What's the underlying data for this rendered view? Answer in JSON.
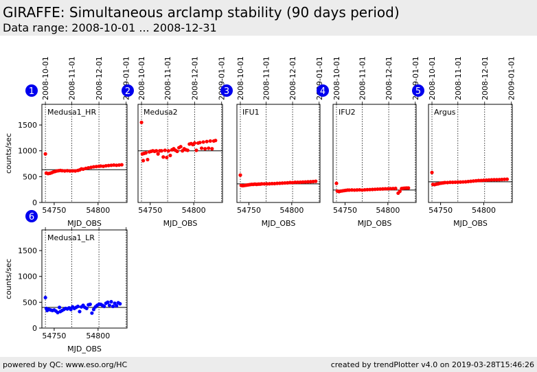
{
  "header": {
    "title": "GIRAFFE: Simultaneous arclamp stability (90 days period)",
    "subtitle": "Data range: 2008-10-01 ... 2008-12-31"
  },
  "footer": {
    "left": "powered by QC: www.eso.org/HC",
    "right": "created by trendPlotter v4.0 on 2019-03-28T15:46:26"
  },
  "colors": {
    "series_red": "#ff0000",
    "series_blue": "#0000ff",
    "badge": "#0000ee",
    "header_bg": "#ececec"
  },
  "chart_data": [
    {
      "type": "scatter",
      "id": 1,
      "label": "Medusa1_HR",
      "color": "#ff0000",
      "xlabel": "MJD_OBS",
      "ylabel": "counts/sec",
      "xlim": [
        54736,
        54833
      ],
      "ylim": [
        0,
        1900
      ],
      "xticks": [
        54750,
        54800
      ],
      "yticks": [
        0,
        500,
        1000,
        1500
      ],
      "date_ticks": [
        {
          "mjd": 54740,
          "label": "2008-10-01"
        },
        {
          "mjd": 54770,
          "label": "2008-11-01"
        },
        {
          "mjd": 54801,
          "label": "2008-12-01"
        },
        {
          "mjd": 54832,
          "label": "2009-01-01"
        }
      ],
      "reference": 635,
      "points": [
        [
          54740,
          940
        ],
        [
          54741,
          570
        ],
        [
          54743,
          560
        ],
        [
          54745,
          565
        ],
        [
          54747,
          575
        ],
        [
          54749,
          590
        ],
        [
          54751,
          600
        ],
        [
          54753,
          610
        ],
        [
          54755,
          615
        ],
        [
          54757,
          620
        ],
        [
          54759,
          615
        ],
        [
          54762,
          610
        ],
        [
          54765,
          615
        ],
        [
          54768,
          610
        ],
        [
          54771,
          612
        ],
        [
          54774,
          610
        ],
        [
          54777,
          620
        ],
        [
          54779,
          630
        ],
        [
          54781,
          650
        ],
        [
          54783,
          645
        ],
        [
          54786,
          660
        ],
        [
          54789,
          670
        ],
        [
          54792,
          680
        ],
        [
          54795,
          690
        ],
        [
          54798,
          695
        ],
        [
          54801,
          700
        ],
        [
          54803,
          705
        ],
        [
          54806,
          700
        ],
        [
          54809,
          710
        ],
        [
          54812,
          715
        ],
        [
          54815,
          720
        ],
        [
          54818,
          725
        ],
        [
          54821,
          720
        ],
        [
          54824,
          725
        ],
        [
          54827,
          730
        ]
      ]
    },
    {
      "type": "scatter",
      "id": 2,
      "label": "Medusa2",
      "color": "#ff0000",
      "xlabel": "MJD_OBS",
      "ylabel": "",
      "xlim": [
        54736,
        54833
      ],
      "ylim": [
        0,
        1900
      ],
      "xticks": [
        54750,
        54800
      ],
      "yticks": [],
      "date_ticks": [
        {
          "mjd": 54740,
          "label": "2008-10-01"
        },
        {
          "mjd": 54770,
          "label": "2008-11-01"
        },
        {
          "mjd": 54801,
          "label": "2008-12-01"
        },
        {
          "mjd": 54832,
          "label": "2009-01-01"
        }
      ],
      "reference": 1000,
      "points": [
        [
          54740,
          1550
        ],
        [
          54741,
          940
        ],
        [
          54742,
          810
        ],
        [
          54743,
          950
        ],
        [
          54745,
          960
        ],
        [
          54747,
          830
        ],
        [
          54749,
          980
        ],
        [
          54751,
          990
        ],
        [
          54753,
          1000
        ],
        [
          54755,
          990
        ],
        [
          54757,
          1000
        ],
        [
          54759,
          940
        ],
        [
          54761,
          1000
        ],
        [
          54763,
          1000
        ],
        [
          54765,
          880
        ],
        [
          54767,
          1010
        ],
        [
          54769,
          870
        ],
        [
          54771,
          1000
        ],
        [
          54773,
          910
        ],
        [
          54775,
          1020
        ],
        [
          54777,
          1040
        ],
        [
          54779,
          1010
        ],
        [
          54781,
          990
        ],
        [
          54783,
          1060
        ],
        [
          54785,
          1080
        ],
        [
          54787,
          1000
        ],
        [
          54789,
          1040
        ],
        [
          54791,
          1020
        ],
        [
          54793,
          1010
        ],
        [
          54795,
          1130
        ],
        [
          54797,
          1140
        ],
        [
          54799,
          1120
        ],
        [
          54801,
          1150
        ],
        [
          54803,
          1010
        ],
        [
          54805,
          1150
        ],
        [
          54807,
          1160
        ],
        [
          54809,
          1050
        ],
        [
          54811,
          1170
        ],
        [
          54813,
          1040
        ],
        [
          54815,
          1180
        ],
        [
          54817,
          1050
        ],
        [
          54819,
          1190
        ],
        [
          54821,
          1040
        ],
        [
          54823,
          1190
        ],
        [
          54825,
          1200
        ]
      ]
    },
    {
      "type": "scatter",
      "id": 3,
      "label": "IFU1",
      "color": "#ff0000",
      "xlabel": "MJD_OBS",
      "ylabel": "",
      "xlim": [
        54736,
        54833
      ],
      "ylim": [
        0,
        1900
      ],
      "xticks": [
        54750,
        54800
      ],
      "yticks": [],
      "date_ticks": [
        {
          "mjd": 54740,
          "label": "2008-10-01"
        },
        {
          "mjd": 54770,
          "label": "2008-11-01"
        },
        {
          "mjd": 54801,
          "label": "2008-12-01"
        },
        {
          "mjd": 54832,
          "label": "2009-01-01"
        }
      ],
      "reference": 360,
      "points": [
        [
          54740,
          530
        ],
        [
          54741,
          330
        ],
        [
          54743,
          325
        ],
        [
          54745,
          330
        ],
        [
          54747,
          335
        ],
        [
          54749,
          340
        ],
        [
          54751,
          345
        ],
        [
          54753,
          350
        ],
        [
          54755,
          350
        ],
        [
          54757,
          355
        ],
        [
          54759,
          350
        ],
        [
          54761,
          355
        ],
        [
          54763,
          355
        ],
        [
          54765,
          360
        ],
        [
          54768,
          360
        ],
        [
          54771,
          360
        ],
        [
          54774,
          362
        ],
        [
          54777,
          365
        ],
        [
          54780,
          365
        ],
        [
          54783,
          370
        ],
        [
          54786,
          372
        ],
        [
          54789,
          375
        ],
        [
          54792,
          378
        ],
        [
          54795,
          380
        ],
        [
          54798,
          385
        ],
        [
          54801,
          385
        ],
        [
          54804,
          390
        ],
        [
          54807,
          390
        ],
        [
          54810,
          392
        ],
        [
          54813,
          395
        ],
        [
          54816,
          398
        ],
        [
          54819,
          400
        ],
        [
          54822,
          402
        ],
        [
          54825,
          405
        ],
        [
          54828,
          410
        ]
      ]
    },
    {
      "type": "scatter",
      "id": 4,
      "label": "IFU2",
      "color": "#ff0000",
      "xlabel": "MJD_OBS",
      "ylabel": "",
      "xlim": [
        54736,
        54833
      ],
      "ylim": [
        0,
        1900
      ],
      "xticks": [
        54750,
        54800
      ],
      "yticks": [],
      "date_ticks": [
        {
          "mjd": 54740,
          "label": "2008-10-01"
        },
        {
          "mjd": 54770,
          "label": "2008-11-01"
        },
        {
          "mjd": 54801,
          "label": "2008-12-01"
        },
        {
          "mjd": 54832,
          "label": "2009-01-01"
        }
      ],
      "reference": 240,
      "points": [
        [
          54740,
          370
        ],
        [
          54741,
          220
        ],
        [
          54743,
          210
        ],
        [
          54745,
          220
        ],
        [
          54747,
          225
        ],
        [
          54749,
          230
        ],
        [
          54751,
          235
        ],
        [
          54753,
          240
        ],
        [
          54755,
          240
        ],
        [
          54758,
          242
        ],
        [
          54761,
          240
        ],
        [
          54764,
          242
        ],
        [
          54767,
          245
        ],
        [
          54770,
          240
        ],
        [
          54773,
          245
        ],
        [
          54776,
          248
        ],
        [
          54779,
          250
        ],
        [
          54782,
          252
        ],
        [
          54785,
          255
        ],
        [
          54788,
          258
        ],
        [
          54791,
          260
        ],
        [
          54794,
          262
        ],
        [
          54797,
          265
        ],
        [
          54800,
          265
        ],
        [
          54803,
          268
        ],
        [
          54806,
          270
        ],
        [
          54809,
          272
        ],
        [
          54812,
          180
        ],
        [
          54814,
          215
        ],
        [
          54816,
          270
        ],
        [
          54818,
          275
        ],
        [
          54820,
          278
        ],
        [
          54822,
          280
        ],
        [
          54824,
          280
        ]
      ]
    },
    {
      "type": "scatter",
      "id": 5,
      "label": "Argus",
      "color": "#ff0000",
      "xlabel": "MJD_OBS",
      "ylabel": "",
      "xlim": [
        54736,
        54833
      ],
      "ylim": [
        0,
        1900
      ],
      "xticks": [
        54750,
        54800
      ],
      "yticks": [],
      "date_ticks": [
        {
          "mjd": 54740,
          "label": "2008-10-01"
        },
        {
          "mjd": 54770,
          "label": "2008-11-01"
        },
        {
          "mjd": 54801,
          "label": "2008-12-01"
        },
        {
          "mjd": 54832,
          "label": "2009-01-01"
        }
      ],
      "reference": 400,
      "points": [
        [
          54740,
          580
        ],
        [
          54741,
          350
        ],
        [
          54743,
          345
        ],
        [
          54745,
          355
        ],
        [
          54747,
          360
        ],
        [
          54749,
          370
        ],
        [
          54751,
          375
        ],
        [
          54753,
          380
        ],
        [
          54755,
          385
        ],
        [
          54758,
          385
        ],
        [
          54761,
          390
        ],
        [
          54764,
          390
        ],
        [
          54767,
          392
        ],
        [
          54770,
          395
        ],
        [
          54773,
          395
        ],
        [
          54776,
          398
        ],
        [
          54779,
          400
        ],
        [
          54782,
          405
        ],
        [
          54785,
          410
        ],
        [
          54788,
          415
        ],
        [
          54791,
          420
        ],
        [
          54794,
          425
        ],
        [
          54797,
          425
        ],
        [
          54800,
          430
        ],
        [
          54803,
          432
        ],
        [
          54806,
          435
        ],
        [
          54809,
          438
        ],
        [
          54812,
          440
        ],
        [
          54815,
          440
        ],
        [
          54818,
          442
        ],
        [
          54821,
          445
        ],
        [
          54824,
          448
        ],
        [
          54827,
          450
        ]
      ]
    },
    {
      "type": "scatter",
      "id": 6,
      "label": "Medusa1_LR",
      "color": "#0000ff",
      "xlabel": "MJD_OBS",
      "ylabel": "counts/sec",
      "xlim": [
        54736,
        54833
      ],
      "ylim": [
        0,
        1900
      ],
      "xticks": [
        54750,
        54800
      ],
      "yticks": [
        0,
        500,
        1000,
        1500
      ],
      "date_ticks": [
        {
          "mjd": 54740,
          "label": ""
        },
        {
          "mjd": 54770,
          "label": ""
        },
        {
          "mjd": 54801,
          "label": ""
        },
        {
          "mjd": 54832,
          "label": ""
        }
      ],
      "reference": 400,
      "points": [
        [
          54740,
          590
        ],
        [
          54741,
          380
        ],
        [
          54742,
          340
        ],
        [
          54744,
          360
        ],
        [
          54746,
          350
        ],
        [
          54748,
          340
        ],
        [
          54750,
          350
        ],
        [
          54752,
          330
        ],
        [
          54754,
          300
        ],
        [
          54756,
          400
        ],
        [
          54757,
          320
        ],
        [
          54759,
          340
        ],
        [
          54761,
          360
        ],
        [
          54763,
          380
        ],
        [
          54765,
          370
        ],
        [
          54767,
          390
        ],
        [
          54769,
          360
        ],
        [
          54771,
          410
        ],
        [
          54773,
          380
        ],
        [
          54775,
          400
        ],
        [
          54777,
          420
        ],
        [
          54779,
          320
        ],
        [
          54781,
          410
        ],
        [
          54783,
          440
        ],
        [
          54785,
          400
        ],
        [
          54787,
          380
        ],
        [
          54789,
          450
        ],
        [
          54791,
          460
        ],
        [
          54793,
          290
        ],
        [
          54795,
          360
        ],
        [
          54797,
          410
        ],
        [
          54799,
          440
        ],
        [
          54801,
          460
        ],
        [
          54803,
          460
        ],
        [
          54805,
          440
        ],
        [
          54807,
          420
        ],
        [
          54809,
          480
        ],
        [
          54811,
          500
        ],
        [
          54813,
          440
        ],
        [
          54815,
          510
        ],
        [
          54817,
          420
        ],
        [
          54819,
          480
        ],
        [
          54821,
          430
        ],
        [
          54823,
          490
        ],
        [
          54825,
          470
        ]
      ]
    }
  ]
}
